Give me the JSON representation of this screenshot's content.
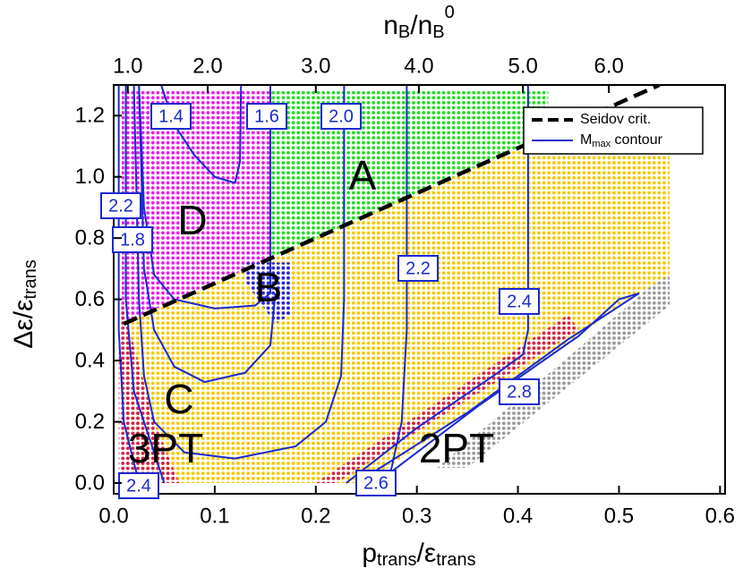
{
  "chart_data": {
    "type": "contour-region",
    "x_title": [
      "p",
      "trans",
      "/ε",
      "trans"
    ],
    "y_title": [
      "Δε/ε",
      "trans"
    ],
    "xlim": [
      0,
      0.605
    ],
    "ylim": [
      -0.035,
      1.3
    ],
    "xticks": [
      {
        "value": 0,
        "label": "0.0"
      },
      0.1,
      0.2,
      0.3,
      0.4,
      0.5,
      0.6
    ],
    "yticks": [
      {
        "value": 0,
        "label": "0.0"
      },
      0.2,
      0.4,
      0.6,
      0.8,
      {
        "value": 1,
        "label": "1.0"
      },
      1.2
    ],
    "top_axis": {
      "title": [
        "n",
        "B",
        "/n",
        "B",
        "0"
      ],
      "ticks": [
        {
          "value": 1,
          "label": "1.0"
        },
        {
          "value": 2,
          "label": "2.0"
        },
        {
          "value": 3,
          "label": "3.0"
        },
        {
          "value": 4,
          "label": "4.0"
        },
        {
          "value": 5,
          "label": "5.0"
        },
        {
          "value": 6,
          "label": "6.0"
        }
      ],
      "positions": [
        0.014,
        0.093,
        0.2,
        0.302,
        0.405,
        0.49
      ]
    },
    "regions": [
      {
        "color": "#e61ee6",
        "x": [
          0.008,
          0.155,
          0.155,
          0.008
        ],
        "y": [
          1.28,
          1.28,
          0.733,
          0.52
        ]
      },
      {
        "color": "#22dd22",
        "x": [
          0.155,
          0.43,
          0.43,
          0.155
        ],
        "y": [
          1.28,
          1.28,
          1.137,
          0.733
        ]
      },
      {
        "color": "#f5c800",
        "x": [
          0.01,
          0.43,
          0.55,
          0.55,
          0.52,
          0.25,
          0.03,
          0.01
        ],
        "y": [
          0.52,
          1.137,
          1.15,
          0.68,
          0.62,
          0.0,
          0.0,
          0.2
        ]
      },
      {
        "color": "#2424e0",
        "x": [
          0.13,
          0.175,
          0.175,
          0.16,
          0.13
        ],
        "y": [
          0.72,
          0.72,
          0.55,
          0.52,
          0.66
        ]
      },
      {
        "color": "#d42050",
        "x": [
          0.005,
          0.02,
          0.04,
          0.065,
          0.005
        ],
        "y": [
          0.62,
          0.45,
          0.2,
          0.0,
          0.0
        ]
      },
      {
        "color": "#d42050",
        "x": [
          0.2,
          0.45,
          0.46,
          0.22
        ],
        "y": [
          0.0,
          0.55,
          0.5,
          0.0
        ]
      },
      {
        "color": "#999999",
        "x": [
          0.53,
          0.55,
          0.55,
          0.35,
          0.32,
          0.46
        ],
        "y": [
          0.64,
          0.68,
          0.58,
          0.05,
          0.05,
          0.44
        ]
      }
    ],
    "seidov": {
      "name": "Seidov crit.",
      "color": "#000000",
      "x": [
        0.01,
        0.54
      ],
      "y": [
        0.52,
        1.3
      ]
    },
    "contour_legend": [
      "M",
      "max",
      " contour"
    ],
    "contour_color": "#1a2ad0",
    "contours": [
      {
        "label": "1.4",
        "x": [
          0.047,
          0.06,
          0.08,
          0.1,
          0.12,
          0.125,
          0.126
        ],
        "y": [
          1.3,
          1.17,
          1.07,
          1.0,
          0.98,
          1.05,
          1.3
        ]
      },
      {
        "label": "1.6",
        "x": [
          0.155,
          0.155,
          0.14,
          0.1,
          0.06,
          0.04,
          0.03,
          0.025
        ],
        "y": [
          1.3,
          0.62,
          0.58,
          0.57,
          0.6,
          0.68,
          0.9,
          1.3
        ]
      },
      {
        "label": "2.0",
        "x": [
          0.228,
          0.228,
          0.225,
          0.21,
          0.18,
          0.12,
          0.07,
          0.04,
          0.03,
          0.025,
          0.02
        ],
        "y": [
          1.3,
          0.6,
          0.35,
          0.2,
          0.12,
          0.08,
          0.1,
          0.2,
          0.35,
          0.6,
          1.3
        ]
      },
      {
        "label": "2.2",
        "x": [
          0.012,
          0.012,
          0.02,
          0.04,
          0.05
        ],
        "y": [
          1.3,
          0.6,
          0.3,
          0.1,
          0.0
        ]
      },
      {
        "label": "1.8",
        "x": [
          0.16,
          0.155,
          0.13,
          0.09,
          0.06,
          0.04,
          0.03,
          0.025
        ],
        "y": [
          0.62,
          0.45,
          0.36,
          0.33,
          0.38,
          0.5,
          0.7,
          1.3
        ]
      },
      {
        "label": "2.2",
        "x": [
          0.29,
          0.29,
          0.285,
          0.275,
          0.27
        ],
        "y": [
          1.3,
          0.5,
          0.2,
          0.05,
          0.0
        ]
      },
      {
        "label": "2.4",
        "x": [
          0.41,
          0.41,
          0.405,
          0.38,
          0.3,
          0.23
        ],
        "y": [
          1.3,
          0.5,
          0.42,
          0.36,
          0.18,
          0.0
        ]
      },
      {
        "label": "2.8",
        "x": [
          0.52,
          0.5,
          0.46,
          0.36,
          0.26
        ],
        "y": [
          0.62,
          0.6,
          0.48,
          0.25,
          0.0
        ]
      },
      {
        "label": "2.6",
        "x": [
          0.52,
          0.45,
          0.35,
          0.24
        ],
        "y": [
          0.62,
          0.47,
          0.23,
          0.0
        ]
      },
      {
        "label": "2.4",
        "x": [
          0.005,
          0.005,
          0.01,
          0.025
        ],
        "y": [
          1.3,
          0.5,
          0.2,
          0.0
        ]
      }
    ],
    "annotations": [
      "A",
      "D",
      "B",
      "C",
      "3PT",
      "2PT"
    ]
  }
}
